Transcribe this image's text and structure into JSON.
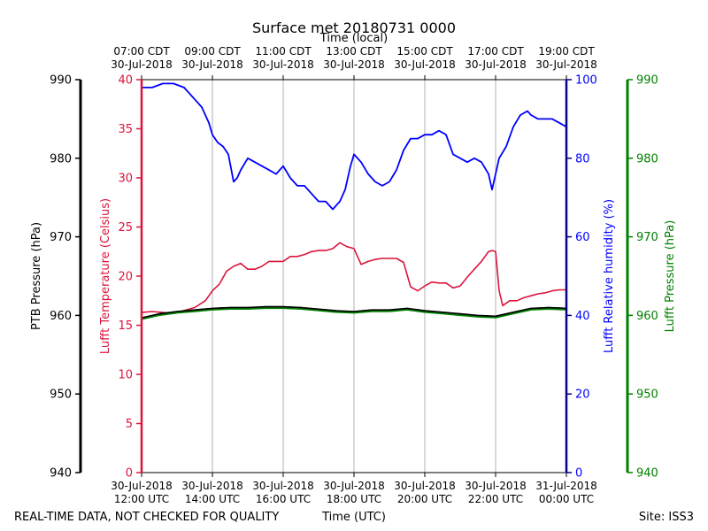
{
  "title": "Surface met 20180731 0000",
  "top_axis_title": "Time (local)",
  "bottom_axis_title": "Time (UTC)",
  "footer_left": "REAL-TIME DATA, NOT CHECKED FOR QUALITY",
  "footer_right": "Site: ISS3",
  "colors": {
    "temperature": "#dc143c",
    "humidity": "#0000ff",
    "ptb_pressure": "#000000",
    "lufft_pressure": "#008000",
    "grid": "#b0b0b0"
  },
  "chart_data": {
    "type": "line",
    "x_ticks_utc": [
      {
        "hour": 12,
        "line1": "30-Jul-2018",
        "line2": "12:00 UTC"
      },
      {
        "hour": 14,
        "line1": "30-Jul-2018",
        "line2": "14:00 UTC"
      },
      {
        "hour": 16,
        "line1": "30-Jul-2018",
        "line2": "16:00 UTC"
      },
      {
        "hour": 18,
        "line1": "30-Jul-2018",
        "line2": "18:00 UTC"
      },
      {
        "hour": 20,
        "line1": "30-Jul-2018",
        "line2": "20:00 UTC"
      },
      {
        "hour": 22,
        "line1": "30-Jul-2018",
        "line2": "22:00 UTC"
      },
      {
        "hour": 24,
        "line1": "31-Jul-2018",
        "line2": "00:00 UTC"
      }
    ],
    "x_ticks_local": [
      {
        "hour": 12,
        "line1": "07:00 CDT",
        "line2": "30-Jul-2018"
      },
      {
        "hour": 14,
        "line1": "09:00 CDT",
        "line2": "30-Jul-2018"
      },
      {
        "hour": 16,
        "line1": "11:00 CDT",
        "line2": "30-Jul-2018"
      },
      {
        "hour": 18,
        "line1": "13:00 CDT",
        "line2": "30-Jul-2018"
      },
      {
        "hour": 20,
        "line1": "15:00 CDT",
        "line2": "30-Jul-2018"
      },
      {
        "hour": 22,
        "line1": "17:00 CDT",
        "line2": "30-Jul-2018"
      },
      {
        "hour": 24,
        "line1": "19:00 CDT",
        "line2": "30-Jul-2018"
      }
    ],
    "xlim": [
      12,
      24
    ],
    "grid": "vertical",
    "axes": {
      "ptb_pressure": {
        "label": "PTB Pressure (hPa)",
        "ylim": [
          940,
          990
        ],
        "ticks": [
          940,
          950,
          960,
          970,
          980,
          990
        ]
      },
      "temperature": {
        "label": "Lufft Temperature (Celsius)",
        "ylim": [
          0,
          40
        ],
        "ticks": [
          0,
          5,
          10,
          15,
          20,
          25,
          30,
          35,
          40
        ]
      },
      "humidity": {
        "label": "Lufft Relative humidity (%)",
        "ylim": [
          0,
          100
        ],
        "ticks": [
          0,
          20,
          40,
          60,
          80,
          100
        ]
      },
      "lufft_pressure": {
        "label": "Lufft Pressure (hPa)",
        "ylim": [
          940,
          990
        ],
        "ticks": [
          940,
          950,
          960,
          970,
          980,
          990
        ]
      }
    },
    "series": [
      {
        "key": "humidity",
        "x": [
          12.0,
          12.3,
          12.6,
          12.9,
          13.2,
          13.5,
          13.7,
          13.9,
          14.0,
          14.15,
          14.3,
          14.45,
          14.6,
          14.7,
          14.8,
          15.0,
          15.2,
          15.4,
          15.6,
          15.8,
          16.0,
          16.2,
          16.4,
          16.6,
          16.8,
          17.0,
          17.2,
          17.4,
          17.6,
          17.75,
          17.9,
          18.0,
          18.2,
          18.4,
          18.6,
          18.8,
          19.0,
          19.2,
          19.4,
          19.6,
          19.8,
          20.0,
          20.2,
          20.4,
          20.6,
          20.8,
          21.0,
          21.2,
          21.4,
          21.6,
          21.8,
          21.9,
          22.0,
          22.1,
          22.3,
          22.5,
          22.7,
          22.9,
          23.0,
          23.2,
          23.4,
          23.6,
          23.8,
          24.0
        ],
        "y": [
          98,
          98,
          99,
          99,
          98,
          95,
          93,
          89,
          86,
          84,
          83,
          81,
          74,
          75,
          77,
          80,
          79,
          78,
          77,
          76,
          78,
          75,
          73,
          73,
          71,
          69,
          69,
          67,
          69,
          72,
          78,
          81,
          79,
          76,
          74,
          73,
          74,
          77,
          82,
          85,
          85,
          86,
          86,
          87,
          86,
          81,
          80,
          79,
          80,
          79,
          76,
          72,
          76,
          80,
          83,
          88,
          91,
          92,
          91,
          90,
          90,
          90,
          89,
          88
        ]
      },
      {
        "key": "temperature",
        "x": [
          12.0,
          12.3,
          12.6,
          12.9,
          13.2,
          13.5,
          13.8,
          14.0,
          14.2,
          14.4,
          14.6,
          14.8,
          15.0,
          15.2,
          15.4,
          15.6,
          15.8,
          16.0,
          16.2,
          16.4,
          16.6,
          16.8,
          17.0,
          17.2,
          17.4,
          17.6,
          17.8,
          18.0,
          18.2,
          18.4,
          18.6,
          18.8,
          19.0,
          19.2,
          19.4,
          19.6,
          19.8,
          20.0,
          20.2,
          20.4,
          20.6,
          20.8,
          21.0,
          21.2,
          21.4,
          21.6,
          21.8,
          21.9,
          22.0,
          22.1,
          22.2,
          22.4,
          22.6,
          22.8,
          23.0,
          23.2,
          23.4,
          23.6,
          23.8,
          24.0
        ],
        "y": [
          16.3,
          16.4,
          16.3,
          16.2,
          16.5,
          16.8,
          17.5,
          18.5,
          19.2,
          20.5,
          21.0,
          21.3,
          20.7,
          20.7,
          21.0,
          21.5,
          21.5,
          21.5,
          22.0,
          22.0,
          22.2,
          22.5,
          22.6,
          22.6,
          22.8,
          23.4,
          23.0,
          22.8,
          21.2,
          21.5,
          21.7,
          21.8,
          21.8,
          21.8,
          21.4,
          18.9,
          18.5,
          19.0,
          19.4,
          19.3,
          19.3,
          18.8,
          19.0,
          19.9,
          20.7,
          21.5,
          22.5,
          22.6,
          22.5,
          18.5,
          17.0,
          17.5,
          17.5,
          17.8,
          18.0,
          18.2,
          18.3,
          18.5,
          18.6,
          18.6
        ]
      },
      {
        "key": "lufft_pressure",
        "x": [
          12.0,
          12.5,
          13.0,
          13.5,
          14.0,
          14.5,
          15.0,
          15.5,
          16.0,
          16.5,
          17.0,
          17.5,
          18.0,
          18.5,
          19.0,
          19.5,
          20.0,
          20.5,
          21.0,
          21.5,
          22.0,
          22.5,
          23.0,
          23.5,
          24.0
        ],
        "y": [
          959.6,
          960.1,
          960.4,
          960.6,
          960.8,
          960.9,
          960.9,
          961.0,
          961.0,
          960.9,
          960.7,
          960.5,
          960.4,
          960.6,
          960.6,
          960.8,
          960.5,
          960.3,
          960.1,
          959.9,
          959.8,
          960.3,
          960.8,
          960.9,
          960.8
        ]
      },
      {
        "key": "ptb_pressure",
        "x": [
          12.0,
          12.5,
          13.0,
          13.5,
          14.0,
          14.5,
          15.0,
          15.5,
          16.0,
          16.5,
          17.0,
          17.5,
          18.0,
          18.5,
          19.0,
          19.5,
          20.0,
          20.5,
          21.0,
          21.5,
          22.0,
          22.5,
          23.0,
          23.5,
          24.0
        ],
        "y": [
          959.7,
          960.2,
          960.5,
          960.7,
          960.9,
          961.0,
          961.0,
          961.1,
          961.1,
          961.0,
          960.8,
          960.6,
          960.5,
          960.7,
          960.7,
          960.9,
          960.6,
          960.4,
          960.2,
          960.0,
          959.9,
          960.4,
          960.9,
          961.0,
          960.9
        ]
      }
    ]
  }
}
